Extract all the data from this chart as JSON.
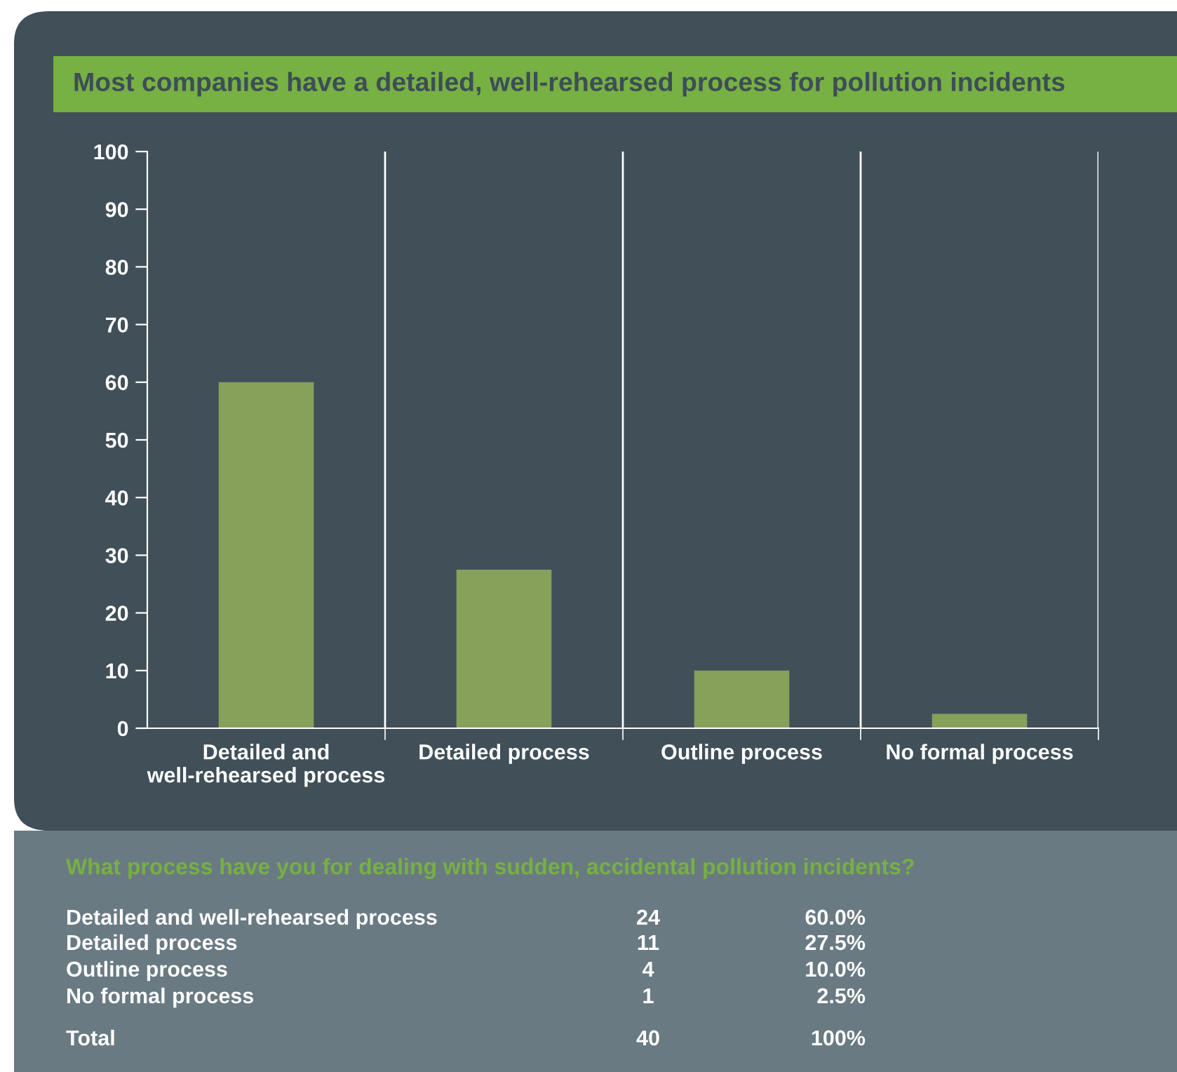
{
  "chart_data": {
    "type": "bar",
    "title": "Most companies have a detailed, well-rehearsed process for pollution incidents",
    "categories": [
      "Detailed and\nwell-rehearsed process",
      "Detailed process",
      "Outline process",
      "No formal process"
    ],
    "values": [
      60.0,
      27.5,
      10.0,
      2.5
    ],
    "color": "#87a05a",
    "ylim": [
      0,
      100
    ],
    "yticks": [
      0,
      10,
      20,
      30,
      40,
      50,
      60,
      70,
      80,
      90,
      100
    ],
    "grid": "x",
    "annotations": [
      "What process have you for dealing with sudden, accidental pollution incidents?",
      "24",
      "11",
      "4",
      "1",
      "60.0%",
      "27.5%",
      "10.0%",
      "2.5%",
      "Total",
      "40",
      "100%"
    ]
  }
}
